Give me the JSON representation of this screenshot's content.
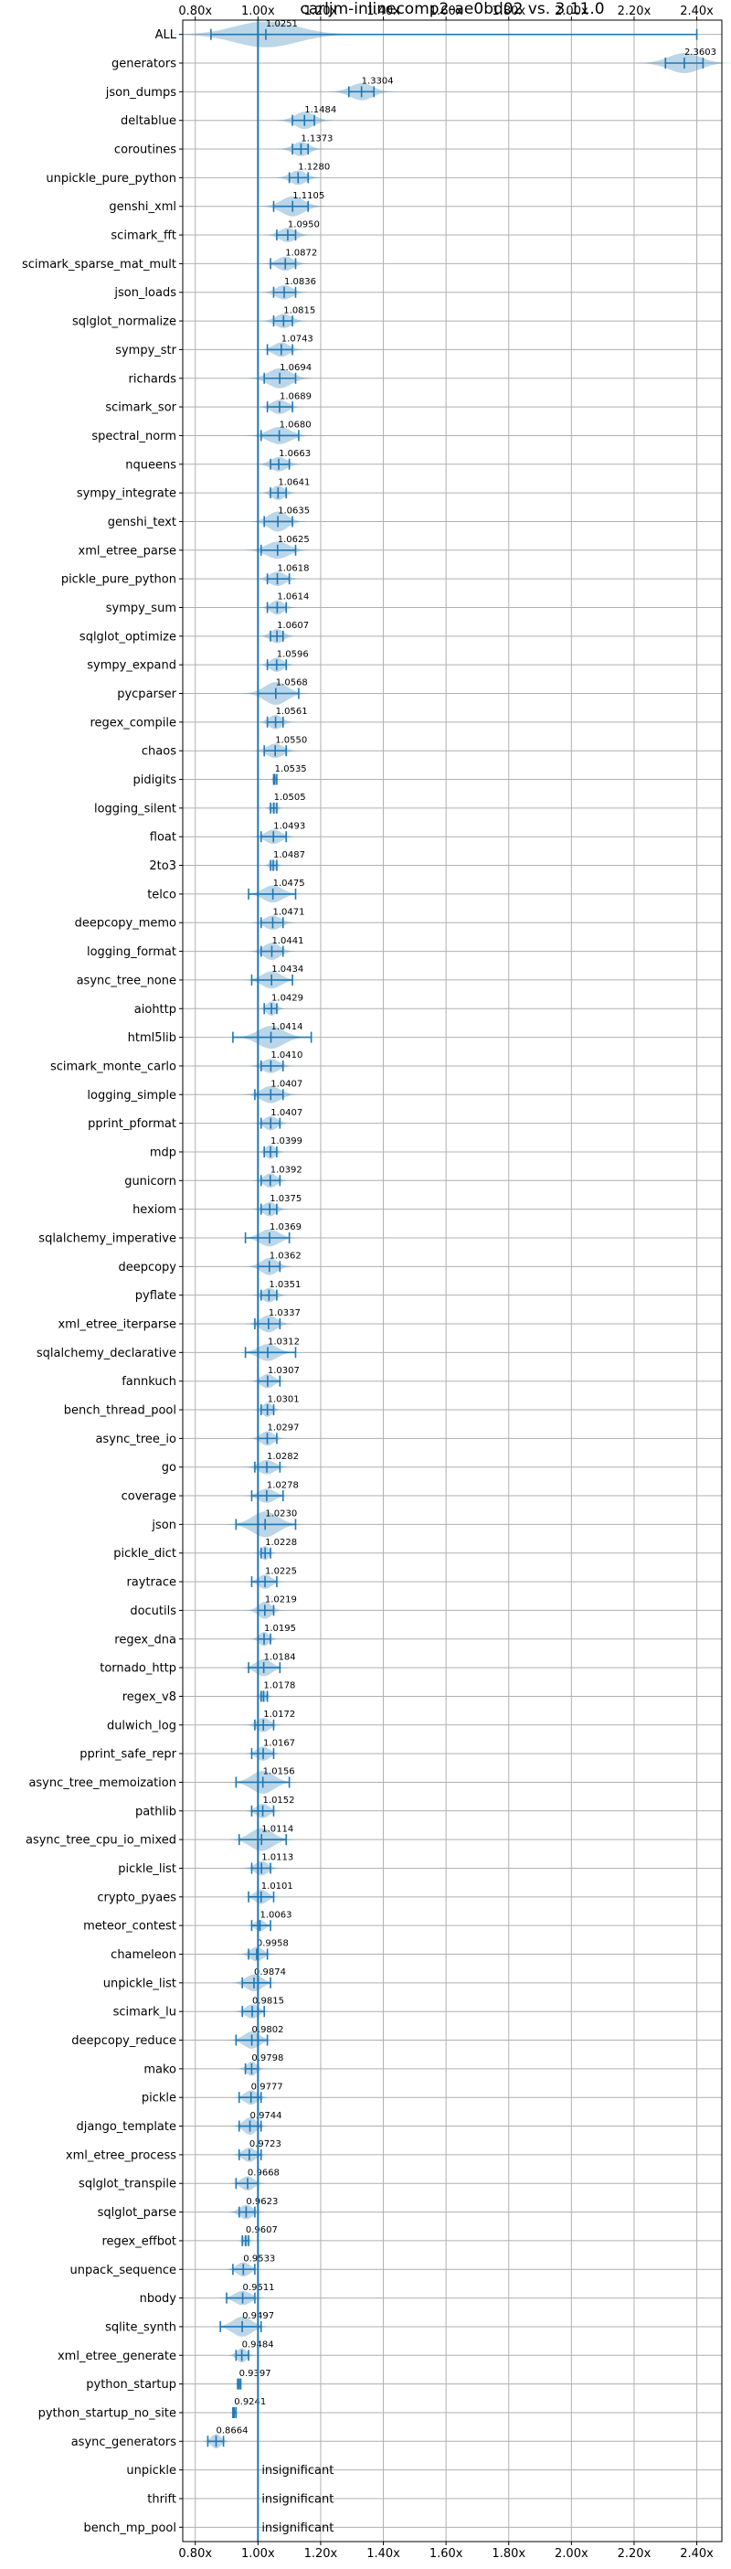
{
  "chart_data": {
    "type": "violin",
    "title": "carljm-inlinecomp2-ae0bd02 vs. 3.11.0",
    "xlim": [
      0.76,
      2.48
    ],
    "x_ticks": [
      "0.80x",
      "1.00x",
      "1.20x",
      "1.40x",
      "1.60x",
      "1.80x",
      "2.00x",
      "2.20x",
      "2.40x"
    ],
    "x_tick_values": [
      0.8,
      1.0,
      1.2,
      1.4,
      1.6,
      1.8,
      2.0,
      2.2,
      2.4
    ],
    "reference_line": 1.0,
    "grid": true,
    "benchmarks": [
      {
        "name": "ALL",
        "value": "1.0251",
        "mean": 1.0251,
        "lo": 0.85,
        "hi": 2.4,
        "spread": 0.1,
        "width": 0.9
      },
      {
        "name": "generators",
        "value": "2.3603",
        "mean": 2.3603,
        "lo": 2.3,
        "hi": 2.42,
        "spread": 0.05,
        "width": 0.7
      },
      {
        "name": "json_dumps",
        "value": "1.3304",
        "mean": 1.3304,
        "lo": 1.29,
        "hi": 1.37,
        "spread": 0.035,
        "width": 0.6
      },
      {
        "name": "deltablue",
        "value": "1.1484",
        "mean": 1.1484,
        "lo": 1.11,
        "hi": 1.18,
        "spread": 0.03,
        "width": 0.6
      },
      {
        "name": "coroutines",
        "value": "1.1373",
        "mean": 1.1373,
        "lo": 1.11,
        "hi": 1.16,
        "spread": 0.025,
        "width": 0.5
      },
      {
        "name": "unpickle_pure_python",
        "value": "1.1280",
        "mean": 1.128,
        "lo": 1.1,
        "hi": 1.16,
        "spread": 0.025,
        "width": 0.5
      },
      {
        "name": "genshi_xml",
        "value": "1.1105",
        "mean": 1.1105,
        "lo": 1.05,
        "hi": 1.16,
        "spread": 0.035,
        "width": 0.7
      },
      {
        "name": "scimark_fft",
        "value": "1.0950",
        "mean": 1.095,
        "lo": 1.06,
        "hi": 1.12,
        "spread": 0.025,
        "width": 0.5
      },
      {
        "name": "scimark_sparse_mat_mult",
        "value": "1.0872",
        "mean": 1.0872,
        "lo": 1.04,
        "hi": 1.12,
        "spread": 0.025,
        "width": 0.5
      },
      {
        "name": "json_loads",
        "value": "1.0836",
        "mean": 1.0836,
        "lo": 1.05,
        "hi": 1.12,
        "spread": 0.025,
        "width": 0.5
      },
      {
        "name": "sqlglot_normalize",
        "value": "1.0815",
        "mean": 1.0815,
        "lo": 1.05,
        "hi": 1.11,
        "spread": 0.025,
        "width": 0.5
      },
      {
        "name": "sympy_str",
        "value": "1.0743",
        "mean": 1.0743,
        "lo": 1.03,
        "hi": 1.11,
        "spread": 0.025,
        "width": 0.5
      },
      {
        "name": "richards",
        "value": "1.0694",
        "mean": 1.0694,
        "lo": 1.02,
        "hi": 1.12,
        "spread": 0.035,
        "width": 0.7
      },
      {
        "name": "scimark_sor",
        "value": "1.0689",
        "mean": 1.0689,
        "lo": 1.03,
        "hi": 1.11,
        "spread": 0.025,
        "width": 0.5
      },
      {
        "name": "spectral_norm",
        "value": "1.0680",
        "mean": 1.068,
        "lo": 1.01,
        "hi": 1.13,
        "spread": 0.035,
        "width": 0.6
      },
      {
        "name": "nqueens",
        "value": "1.0663",
        "mean": 1.0663,
        "lo": 1.04,
        "hi": 1.1,
        "spread": 0.025,
        "width": 0.5
      },
      {
        "name": "sympy_integrate",
        "value": "1.0641",
        "mean": 1.0641,
        "lo": 1.04,
        "hi": 1.09,
        "spread": 0.02,
        "width": 0.5
      },
      {
        "name": "genshi_text",
        "value": "1.0635",
        "mean": 1.0635,
        "lo": 1.02,
        "hi": 1.11,
        "spread": 0.03,
        "width": 0.7
      },
      {
        "name": "xml_etree_parse",
        "value": "1.0625",
        "mean": 1.0625,
        "lo": 1.01,
        "hi": 1.12,
        "spread": 0.035,
        "width": 0.6
      },
      {
        "name": "pickle_pure_python",
        "value": "1.0618",
        "mean": 1.0618,
        "lo": 1.03,
        "hi": 1.1,
        "spread": 0.025,
        "width": 0.5
      },
      {
        "name": "sympy_sum",
        "value": "1.0614",
        "mean": 1.0614,
        "lo": 1.03,
        "hi": 1.09,
        "spread": 0.02,
        "width": 0.5
      },
      {
        "name": "sqlglot_optimize",
        "value": "1.0607",
        "mean": 1.0607,
        "lo": 1.04,
        "hi": 1.08,
        "spread": 0.02,
        "width": 0.5
      },
      {
        "name": "sympy_expand",
        "value": "1.0596",
        "mean": 1.0596,
        "lo": 1.03,
        "hi": 1.09,
        "spread": 0.02,
        "width": 0.5
      },
      {
        "name": "pycparser",
        "value": "1.0568",
        "mean": 1.0568,
        "lo": 1.0,
        "hi": 1.13,
        "spread": 0.035,
        "width": 0.8
      },
      {
        "name": "regex_compile",
        "value": "1.0561",
        "mean": 1.0561,
        "lo": 1.03,
        "hi": 1.08,
        "spread": 0.02,
        "width": 0.5
      },
      {
        "name": "chaos",
        "value": "1.0550",
        "mean": 1.055,
        "lo": 1.02,
        "hi": 1.09,
        "spread": 0.025,
        "width": 0.5
      },
      {
        "name": "pidigits",
        "value": "1.0535",
        "mean": 1.0535,
        "lo": 1.05,
        "hi": 1.06,
        "spread": 0.005,
        "width": 0.3
      },
      {
        "name": "logging_silent",
        "value": "1.0505",
        "mean": 1.0505,
        "lo": 1.04,
        "hi": 1.06,
        "spread": 0.01,
        "width": 0.4
      },
      {
        "name": "float",
        "value": "1.0493",
        "mean": 1.0493,
        "lo": 1.01,
        "hi": 1.09,
        "spread": 0.025,
        "width": 0.5
      },
      {
        "name": "2to3",
        "value": "1.0487",
        "mean": 1.0487,
        "lo": 1.04,
        "hi": 1.06,
        "spread": 0.01,
        "width": 0.4
      },
      {
        "name": "telco",
        "value": "1.0475",
        "mean": 1.0475,
        "lo": 0.97,
        "hi": 1.12,
        "spread": 0.03,
        "width": 0.6
      },
      {
        "name": "deepcopy_memo",
        "value": "1.0471",
        "mean": 1.0471,
        "lo": 1.01,
        "hi": 1.08,
        "spread": 0.025,
        "width": 0.5
      },
      {
        "name": "logging_format",
        "value": "1.0441",
        "mean": 1.0441,
        "lo": 1.01,
        "hi": 1.08,
        "spread": 0.025,
        "width": 0.6
      },
      {
        "name": "async_tree_none",
        "value": "1.0434",
        "mean": 1.0434,
        "lo": 0.98,
        "hi": 1.11,
        "spread": 0.03,
        "width": 0.6
      },
      {
        "name": "aiohttp",
        "value": "1.0429",
        "mean": 1.0429,
        "lo": 1.02,
        "hi": 1.06,
        "spread": 0.015,
        "width": 0.5
      },
      {
        "name": "html5lib",
        "value": "1.0414",
        "mean": 1.0414,
        "lo": 0.92,
        "hi": 1.17,
        "spread": 0.04,
        "width": 0.8
      },
      {
        "name": "scimark_monte_carlo",
        "value": "1.0410",
        "mean": 1.041,
        "lo": 1.01,
        "hi": 1.08,
        "spread": 0.025,
        "width": 0.5
      },
      {
        "name": "logging_simple",
        "value": "1.0407",
        "mean": 1.0407,
        "lo": 0.99,
        "hi": 1.08,
        "spread": 0.03,
        "width": 0.6
      },
      {
        "name": "pprint_pformat",
        "value": "1.0407",
        "mean": 1.0407,
        "lo": 1.01,
        "hi": 1.07,
        "spread": 0.02,
        "width": 0.5
      },
      {
        "name": "mdp",
        "value": "1.0399",
        "mean": 1.0399,
        "lo": 1.02,
        "hi": 1.06,
        "spread": 0.015,
        "width": 0.5
      },
      {
        "name": "gunicorn",
        "value": "1.0392",
        "mean": 1.0392,
        "lo": 1.01,
        "hi": 1.07,
        "spread": 0.02,
        "width": 0.5
      },
      {
        "name": "hexiom",
        "value": "1.0375",
        "mean": 1.0375,
        "lo": 1.01,
        "hi": 1.06,
        "spread": 0.02,
        "width": 0.5
      },
      {
        "name": "sqlalchemy_imperative",
        "value": "1.0369",
        "mean": 1.0369,
        "lo": 0.96,
        "hi": 1.1,
        "spread": 0.03,
        "width": 0.6
      },
      {
        "name": "deepcopy",
        "value": "1.0362",
        "mean": 1.0362,
        "lo": 1.0,
        "hi": 1.07,
        "spread": 0.025,
        "width": 0.6
      },
      {
        "name": "pyflate",
        "value": "1.0351",
        "mean": 1.0351,
        "lo": 1.01,
        "hi": 1.06,
        "spread": 0.02,
        "width": 0.5
      },
      {
        "name": "xml_etree_iterparse",
        "value": "1.0337",
        "mean": 1.0337,
        "lo": 0.99,
        "hi": 1.07,
        "spread": 0.025,
        "width": 0.6
      },
      {
        "name": "sqlalchemy_declarative",
        "value": "1.0312",
        "mean": 1.0312,
        "lo": 0.96,
        "hi": 1.12,
        "spread": 0.03,
        "width": 0.6
      },
      {
        "name": "fannkuch",
        "value": "1.0307",
        "mean": 1.0307,
        "lo": 1.0,
        "hi": 1.07,
        "spread": 0.02,
        "width": 0.5
      },
      {
        "name": "bench_thread_pool",
        "value": "1.0301",
        "mean": 1.0301,
        "lo": 1.01,
        "hi": 1.05,
        "spread": 0.015,
        "width": 0.5
      },
      {
        "name": "async_tree_io",
        "value": "1.0297",
        "mean": 1.0297,
        "lo": 1.0,
        "hi": 1.06,
        "spread": 0.02,
        "width": 0.5
      },
      {
        "name": "go",
        "value": "1.0282",
        "mean": 1.0282,
        "lo": 0.99,
        "hi": 1.07,
        "spread": 0.025,
        "width": 0.5
      },
      {
        "name": "coverage",
        "value": "1.0278",
        "mean": 1.0278,
        "lo": 0.98,
        "hi": 1.08,
        "spread": 0.025,
        "width": 0.5
      },
      {
        "name": "json",
        "value": "1.0230",
        "mean": 1.023,
        "lo": 0.93,
        "hi": 1.12,
        "spread": 0.04,
        "width": 0.9
      },
      {
        "name": "pickle_dict",
        "value": "1.0228",
        "mean": 1.0228,
        "lo": 1.01,
        "hi": 1.04,
        "spread": 0.012,
        "width": 0.5
      },
      {
        "name": "raytrace",
        "value": "1.0225",
        "mean": 1.0225,
        "lo": 0.98,
        "hi": 1.06,
        "spread": 0.02,
        "width": 0.5
      },
      {
        "name": "docutils",
        "value": "1.0219",
        "mean": 1.0219,
        "lo": 1.0,
        "hi": 1.05,
        "spread": 0.02,
        "width": 0.6
      },
      {
        "name": "regex_dna",
        "value": "1.0195",
        "mean": 1.0195,
        "lo": 1.0,
        "hi": 1.04,
        "spread": 0.015,
        "width": 0.5
      },
      {
        "name": "tornado_http",
        "value": "1.0184",
        "mean": 1.0184,
        "lo": 0.97,
        "hi": 1.07,
        "spread": 0.025,
        "width": 0.6
      },
      {
        "name": "regex_v8",
        "value": "1.0178",
        "mean": 1.0178,
        "lo": 1.01,
        "hi": 1.03,
        "spread": 0.01,
        "width": 0.4
      },
      {
        "name": "dulwich_log",
        "value": "1.0172",
        "mean": 1.0172,
        "lo": 0.99,
        "hi": 1.05,
        "spread": 0.02,
        "width": 0.5
      },
      {
        "name": "pprint_safe_repr",
        "value": "1.0167",
        "mean": 1.0167,
        "lo": 0.98,
        "hi": 1.05,
        "spread": 0.02,
        "width": 0.5
      },
      {
        "name": "async_tree_memoization",
        "value": "1.0156",
        "mean": 1.0156,
        "lo": 0.93,
        "hi": 1.1,
        "spread": 0.035,
        "width": 0.8
      },
      {
        "name": "pathlib",
        "value": "1.0152",
        "mean": 1.0152,
        "lo": 0.98,
        "hi": 1.05,
        "spread": 0.02,
        "width": 0.5
      },
      {
        "name": "async_tree_cpu_io_mixed",
        "value": "1.0114",
        "mean": 1.0114,
        "lo": 0.94,
        "hi": 1.09,
        "spread": 0.035,
        "width": 0.8
      },
      {
        "name": "pickle_list",
        "value": "1.0113",
        "mean": 1.0113,
        "lo": 0.98,
        "hi": 1.04,
        "spread": 0.02,
        "width": 0.5
      },
      {
        "name": "crypto_pyaes",
        "value": "1.0101",
        "mean": 1.0101,
        "lo": 0.97,
        "hi": 1.05,
        "spread": 0.02,
        "width": 0.5
      },
      {
        "name": "meteor_contest",
        "value": "1.0063",
        "mean": 1.0063,
        "lo": 0.98,
        "hi": 1.04,
        "spread": 0.015,
        "width": 0.4
      },
      {
        "name": "chameleon",
        "value": "0.9958",
        "mean": 0.9958,
        "lo": 0.97,
        "hi": 1.03,
        "spread": 0.02,
        "width": 0.5
      },
      {
        "name": "unpickle_list",
        "value": "0.9874",
        "mean": 0.9874,
        "lo": 0.95,
        "hi": 1.04,
        "spread": 0.025,
        "width": 0.6
      },
      {
        "name": "scimark_lu",
        "value": "0.9815",
        "mean": 0.9815,
        "lo": 0.95,
        "hi": 1.02,
        "spread": 0.02,
        "width": 0.5
      },
      {
        "name": "deepcopy_reduce",
        "value": "0.9802",
        "mean": 0.9802,
        "lo": 0.93,
        "hi": 1.03,
        "spread": 0.025,
        "width": 0.6
      },
      {
        "name": "mako",
        "value": "0.9798",
        "mean": 0.9798,
        "lo": 0.96,
        "hi": 1.0,
        "spread": 0.015,
        "width": 0.5
      },
      {
        "name": "pickle",
        "value": "0.9777",
        "mean": 0.9777,
        "lo": 0.94,
        "hi": 1.01,
        "spread": 0.02,
        "width": 0.5
      },
      {
        "name": "django_template",
        "value": "0.9744",
        "mean": 0.9744,
        "lo": 0.94,
        "hi": 1.01,
        "spread": 0.02,
        "width": 0.6
      },
      {
        "name": "xml_etree_process",
        "value": "0.9723",
        "mean": 0.9723,
        "lo": 0.94,
        "hi": 1.01,
        "spread": 0.02,
        "width": 0.5
      },
      {
        "name": "sqlglot_transpile",
        "value": "0.9668",
        "mean": 0.9668,
        "lo": 0.93,
        "hi": 1.0,
        "spread": 0.02,
        "width": 0.5
      },
      {
        "name": "sqlglot_parse",
        "value": "0.9623",
        "mean": 0.9623,
        "lo": 0.94,
        "hi": 0.99,
        "spread": 0.02,
        "width": 0.5
      },
      {
        "name": "regex_effbot",
        "value": "0.9607",
        "mean": 0.9607,
        "lo": 0.95,
        "hi": 0.97,
        "spread": 0.008,
        "width": 0.4
      },
      {
        "name": "unpack_sequence",
        "value": "0.9533",
        "mean": 0.9533,
        "lo": 0.92,
        "hi": 0.99,
        "spread": 0.02,
        "width": 0.5
      },
      {
        "name": "nbody",
        "value": "0.9511",
        "mean": 0.9511,
        "lo": 0.9,
        "hi": 0.99,
        "spread": 0.025,
        "width": 0.5
      },
      {
        "name": "sqlite_synth",
        "value": "0.9497",
        "mean": 0.9497,
        "lo": 0.88,
        "hi": 1.01,
        "spread": 0.03,
        "width": 0.7
      },
      {
        "name": "xml_etree_generate",
        "value": "0.9484",
        "mean": 0.9484,
        "lo": 0.93,
        "hi": 0.97,
        "spread": 0.015,
        "width": 0.5
      },
      {
        "name": "python_startup",
        "value": "0.9397",
        "mean": 0.9397,
        "lo": 0.935,
        "hi": 0.945,
        "spread": 0.004,
        "width": 0.3
      },
      {
        "name": "python_startup_no_site",
        "value": "0.9241",
        "mean": 0.9241,
        "lo": 0.92,
        "hi": 0.93,
        "spread": 0.004,
        "width": 0.3
      },
      {
        "name": "async_generators",
        "value": "0.8664",
        "mean": 0.8664,
        "lo": 0.84,
        "hi": 0.89,
        "spread": 0.015,
        "width": 0.5
      },
      {
        "name": "unpickle",
        "value": "insignificant"
      },
      {
        "name": "thrift",
        "value": "insignificant"
      },
      {
        "name": "bench_mp_pool",
        "value": "insignificant"
      }
    ]
  }
}
